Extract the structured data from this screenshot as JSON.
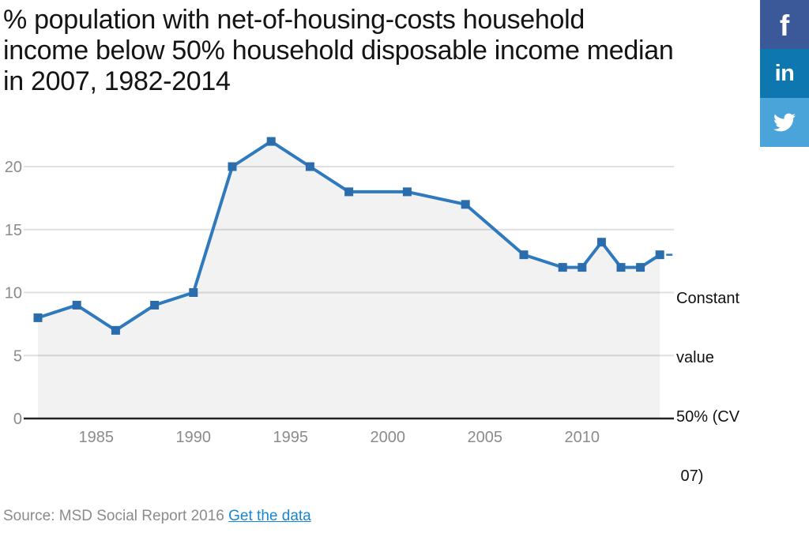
{
  "header": {
    "title_lines": [
      "% population with net-of-housing-costs household",
      "income below 50% household disposable income median",
      "in 2007, 1982-2014"
    ]
  },
  "share_buttons": [
    {
      "name": "facebook",
      "glyph": "f",
      "color": "#3b5998"
    },
    {
      "name": "linkedin",
      "glyph": "in",
      "color": "#0e77af"
    },
    {
      "name": "twitter",
      "glyph": "twitter-bird",
      "color": "#4aa4da"
    }
  ],
  "chart_data": {
    "type": "line",
    "series": [
      {
        "name": "Constant value 50% (CV 07)",
        "x": [
          1982,
          1984,
          1986,
          1988,
          1990,
          1992,
          1994,
          1996,
          1998,
          2001,
          2004,
          2007,
          2009,
          2010,
          2011,
          2012,
          2013,
          2014
        ],
        "values": [
          8,
          9,
          7,
          9,
          10,
          20,
          22,
          20,
          18,
          18,
          17,
          13,
          12,
          12,
          14,
          12,
          12,
          13
        ]
      }
    ],
    "x_ticks": [
      1985,
      1990,
      1995,
      2000,
      2005,
      2010
    ],
    "y_ticks": [
      0,
      5,
      10,
      15,
      20
    ],
    "xlim": [
      1982,
      2014
    ],
    "ylim": [
      0,
      23
    ],
    "grid": true,
    "legend_position": "right",
    "legend_label_lines": [
      "Constant",
      "value",
      "50% (CV",
      " 07)"
    ],
    "line_color": "#2e7abd",
    "marker_color": "#2b6dac",
    "area_fill": "rgba(0,0,0,0.05)",
    "grid_color": "#e0e0e0",
    "axis_line_color": "#232323",
    "tick_label_color": "#8b8b8b"
  },
  "footer": {
    "source_text": "Source: MSD Social Report 2016",
    "link_label": "Get the data"
  }
}
